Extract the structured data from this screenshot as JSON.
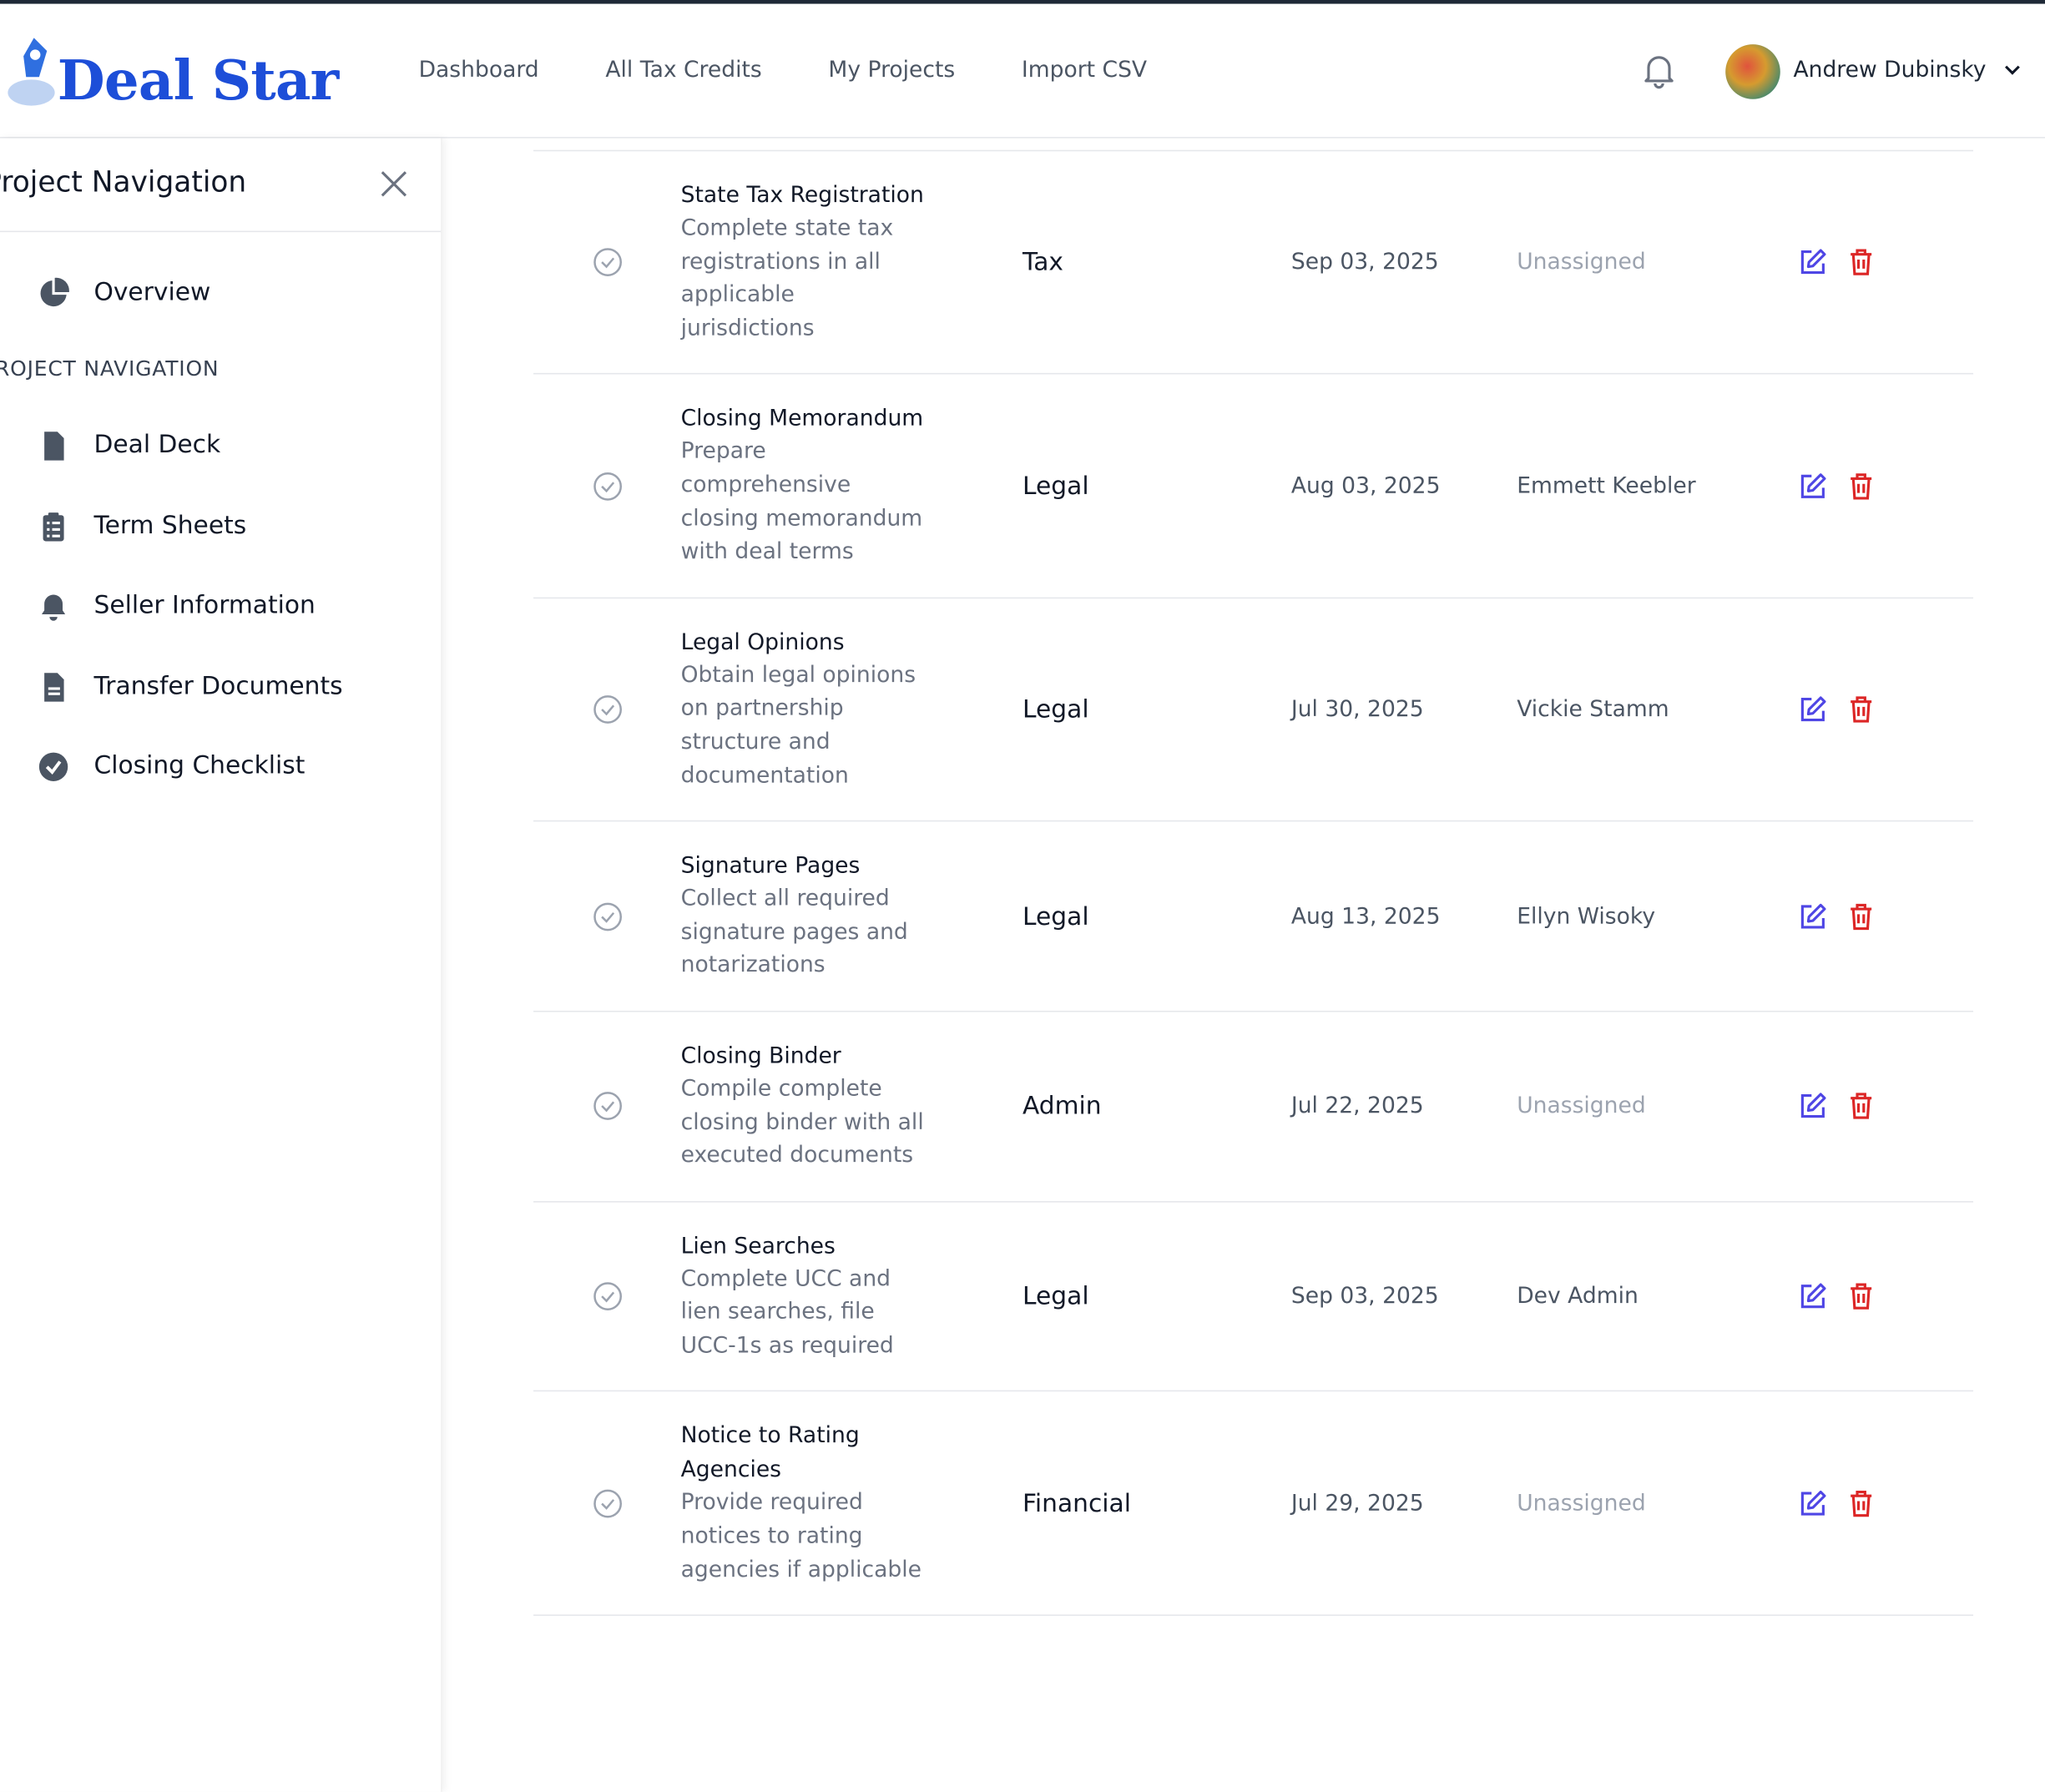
{
  "header": {
    "logo": "Deal Star",
    "nav": [
      "Dashboard",
      "All Tax Credits",
      "My Projects",
      "Import CSV"
    ],
    "user": "Andrew Dubinsky"
  },
  "sidebar": {
    "title": "Project Navigation",
    "overview": "Overview",
    "section": "PROJECT NAVIGATION",
    "items": [
      "Deal Deck",
      "Term Sheets",
      "Seller Information",
      "Transfer Documents",
      "Closing Checklist"
    ]
  },
  "table": {
    "rows": [
      {
        "title": "State Tax Registration",
        "description": "Complete state tax registrations in all applicable jurisdictions",
        "category": "Tax",
        "date": "Sep 03, 2025",
        "assignee": "Unassigned",
        "assignee_color": "#9ca3af"
      },
      {
        "title": "Closing Memorandum",
        "description": "Prepare comprehensive closing memorandum with deal terms",
        "category": "Legal",
        "date": "Aug 03, 2025",
        "assignee": "Emmett Keebler",
        "assignee_color": "#4b5563"
      },
      {
        "title": "Legal Opinions",
        "description": "Obtain legal opinions on partnership structure and documentation",
        "category": "Legal",
        "date": "Jul 30, 2025",
        "assignee": "Vickie Stamm",
        "assignee_color": "#4b5563"
      },
      {
        "title": "Signature Pages",
        "description": "Collect all required signature pages and notarizations",
        "category": "Legal",
        "date": "Aug 13, 2025",
        "assignee": "Ellyn Wisoky",
        "assignee_color": "#4b5563"
      },
      {
        "title": "Closing Binder",
        "description": "Compile complete closing binder with all executed documents",
        "category": "Admin",
        "date": "Jul 22, 2025",
        "assignee": "Unassigned",
        "assignee_color": "#9ca3af"
      },
      {
        "title": "Lien Searches",
        "description": "Complete UCC and lien searches, file UCC-1s as required",
        "category": "Legal",
        "date": "Sep 03, 2025",
        "assignee": "Dev Admin",
        "assignee_color": "#4b5563"
      },
      {
        "title": "Notice to Rating Agencies",
        "description": "Provide required notices to rating agencies if applicable",
        "category": "Financial",
        "date": "Jul 29, 2025",
        "assignee": "Unassigned",
        "assignee_color": "#9ca3af"
      }
    ]
  }
}
